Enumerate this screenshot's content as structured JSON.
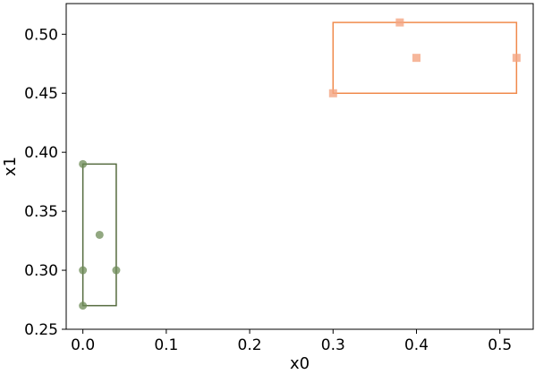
{
  "chart_data": {
    "type": "scatter",
    "xlabel": "x0",
    "ylabel": "x1",
    "xlim": [
      -0.02,
      0.54
    ],
    "ylim": [
      0.25,
      0.526
    ],
    "xticks": [
      {
        "value": 0.0,
        "label": "0.0"
      },
      {
        "value": 0.1,
        "label": "0.1"
      },
      {
        "value": 0.2,
        "label": "0.2"
      },
      {
        "value": 0.3,
        "label": "0.3"
      },
      {
        "value": 0.4,
        "label": "0.4"
      },
      {
        "value": 0.5,
        "label": "0.5"
      }
    ],
    "yticks": [
      {
        "value": 0.25,
        "label": "0.25"
      },
      {
        "value": 0.3,
        "label": "0.30"
      },
      {
        "value": 0.35,
        "label": "0.35"
      },
      {
        "value": 0.4,
        "label": "0.40"
      },
      {
        "value": 0.45,
        "label": "0.45"
      },
      {
        "value": 0.5,
        "label": "0.50"
      }
    ],
    "grid": false,
    "series": [
      {
        "marker": "circle",
        "color": "#6e8b57",
        "box_color": "#556b3f",
        "points": [
          {
            "x": 0.0,
            "y": 0.39
          },
          {
            "x": 0.02,
            "y": 0.33
          },
          {
            "x": 0.0,
            "y": 0.3
          },
          {
            "x": 0.04,
            "y": 0.3
          },
          {
            "x": 0.0,
            "y": 0.27
          }
        ],
        "bounding_box": {
          "x_min": 0.0,
          "x_max": 0.04,
          "y_min": 0.27,
          "y_max": 0.39
        }
      },
      {
        "marker": "square",
        "color": "#f4a582",
        "box_color": "#f08a4b",
        "points": [
          {
            "x": 0.38,
            "y": 0.51
          },
          {
            "x": 0.4,
            "y": 0.48
          },
          {
            "x": 0.52,
            "y": 0.48
          },
          {
            "x": 0.3,
            "y": 0.45
          }
        ],
        "bounding_box": {
          "x_min": 0.3,
          "x_max": 0.52,
          "y_min": 0.45,
          "y_max": 0.51
        }
      }
    ]
  }
}
